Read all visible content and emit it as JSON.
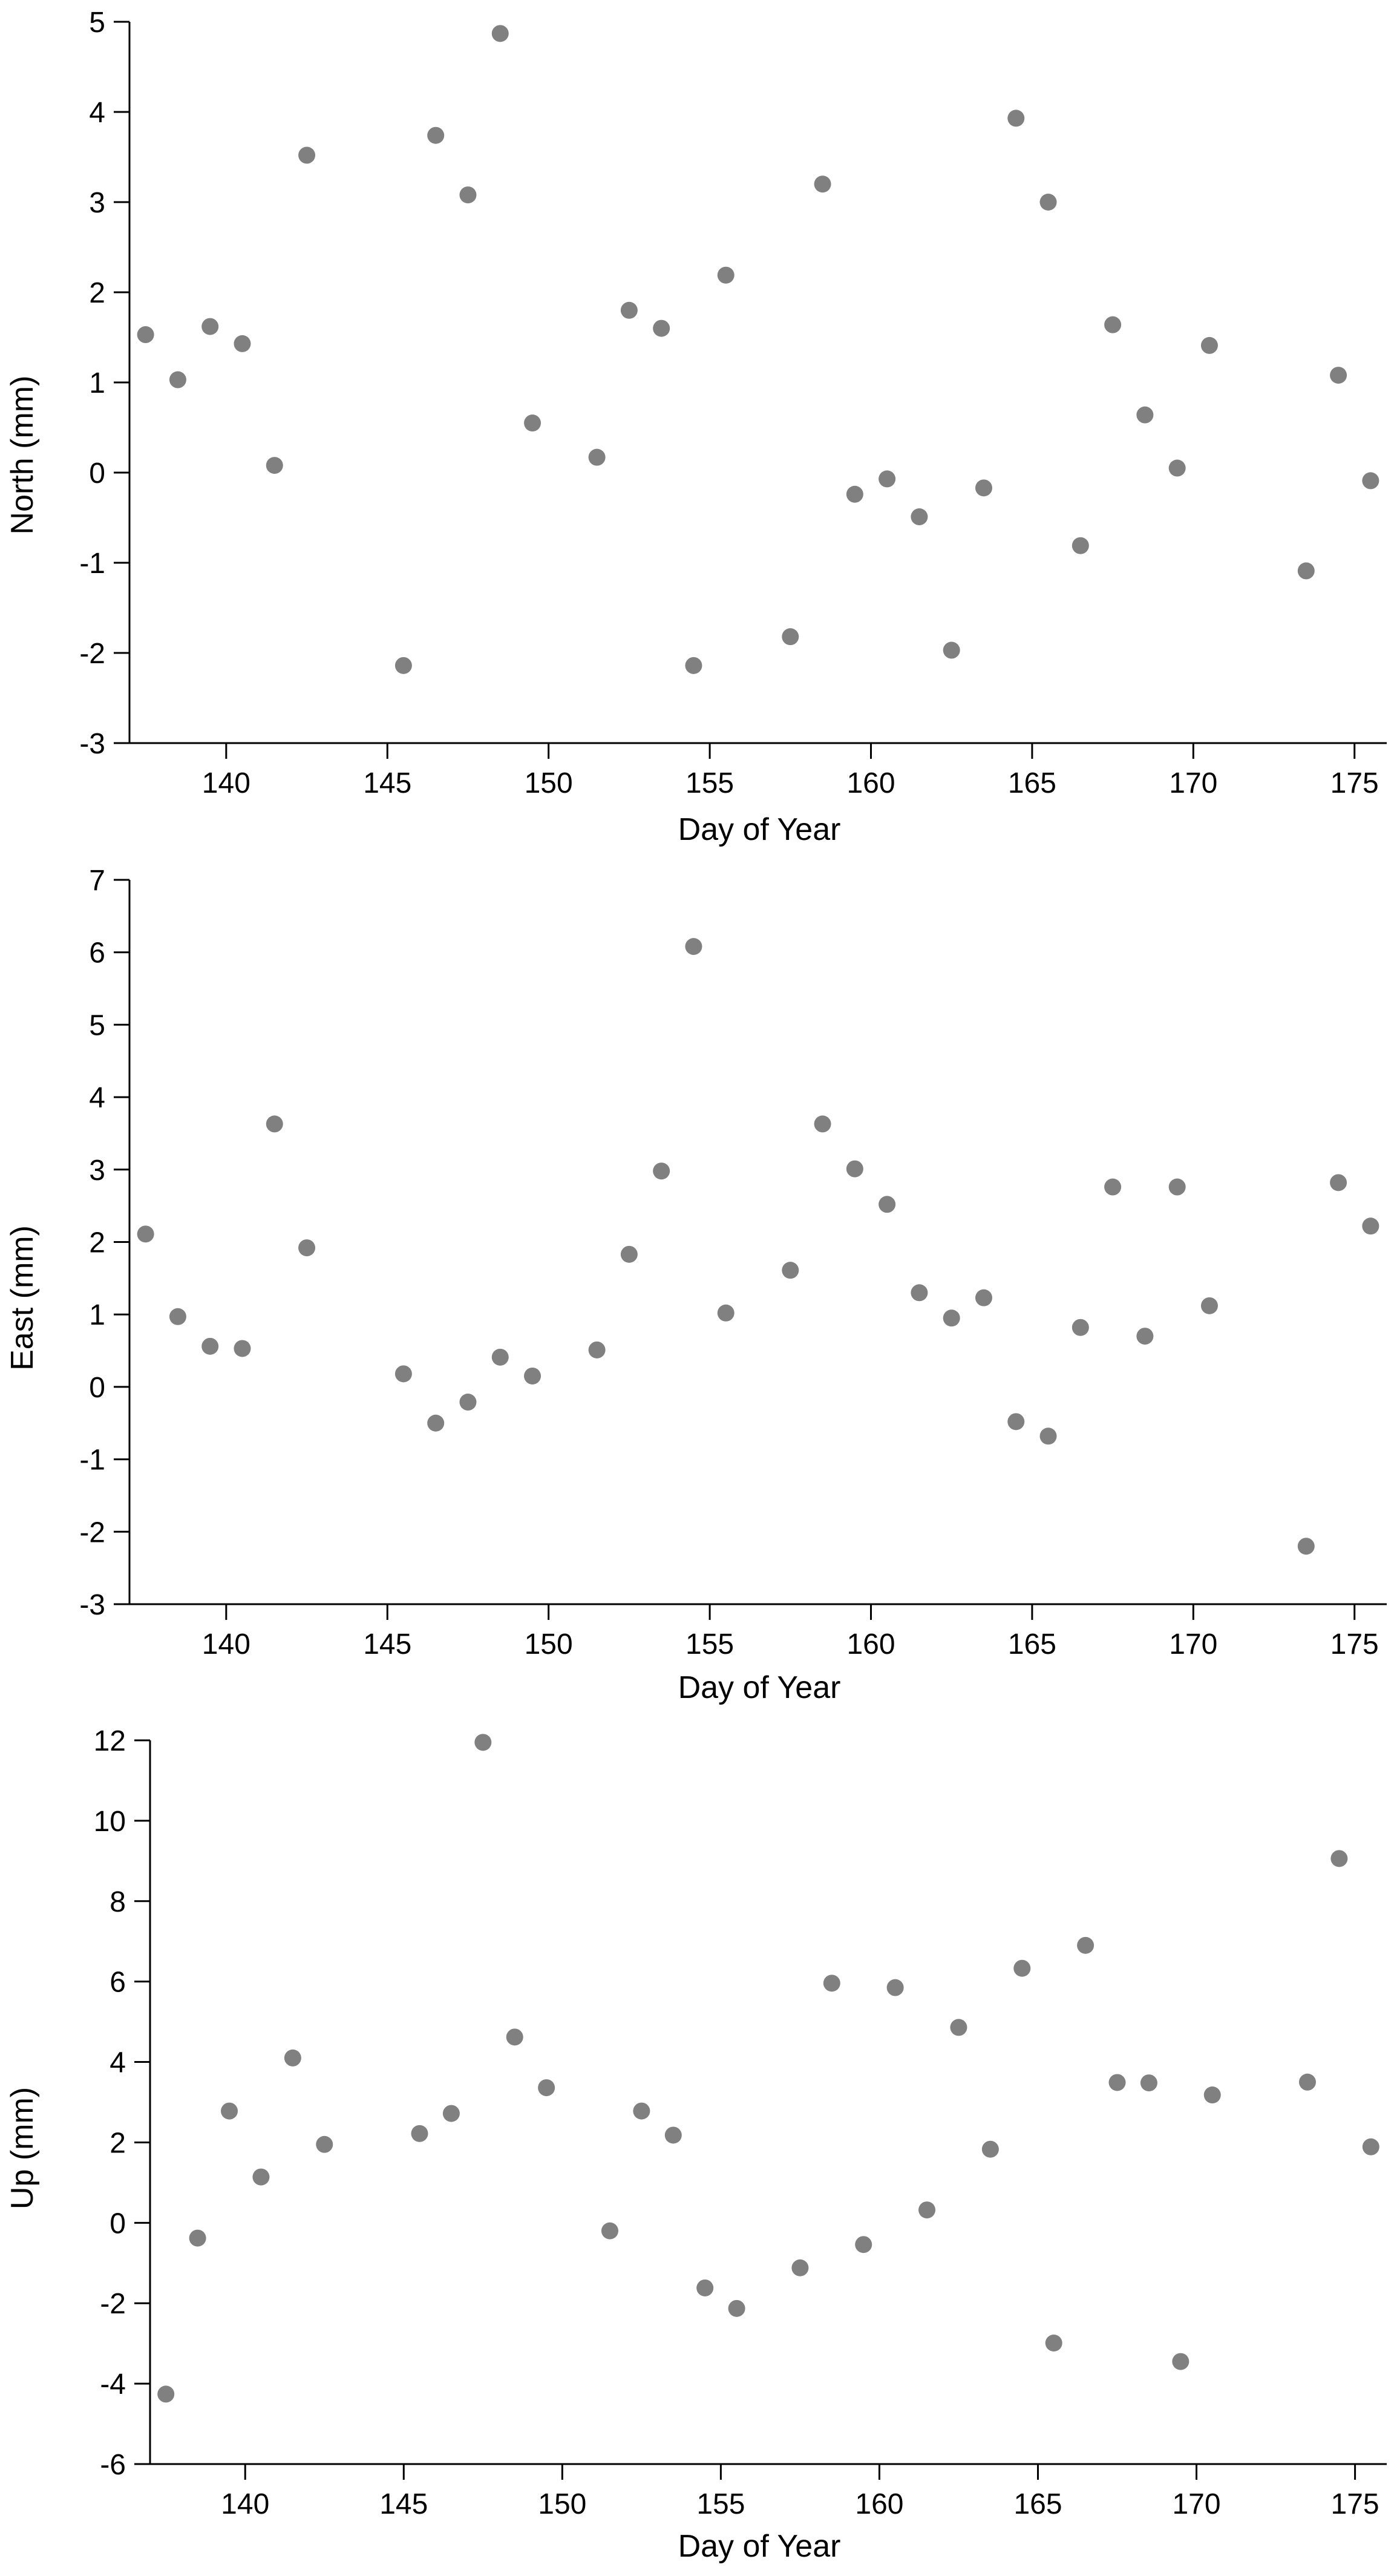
{
  "chart_data": [
    {
      "type": "scatter",
      "xlabel": "Day of Year",
      "ylabel": "North (mm)",
      "xlim": [
        137,
        176
      ],
      "ylim": [
        -3,
        5
      ],
      "xticks": [
        140,
        145,
        150,
        155,
        160,
        165,
        170,
        175
      ],
      "yticks": [
        -3,
        -2,
        -1,
        0,
        1,
        2,
        3,
        4,
        5
      ],
      "grid": false,
      "marker_color": "#808080",
      "x": [
        137.5,
        138.5,
        139.5,
        140.5,
        141.5,
        142.5,
        145.5,
        146.5,
        147.5,
        148.5,
        149.5,
        151.5,
        152.5,
        153.5,
        154.5,
        155.5,
        157.5,
        158.5,
        159.5,
        160.5,
        161.5,
        162.5,
        163.5,
        164.5,
        165.5,
        166.5,
        167.5,
        168.5,
        169.5,
        170.5,
        173.5,
        174.5,
        175.5
      ],
      "y": [
        1.53,
        1.03,
        1.62,
        1.43,
        0.08,
        3.52,
        -2.14,
        3.74,
        3.08,
        4.87,
        0.55,
        0.17,
        1.8,
        1.6,
        -2.14,
        2.19,
        -1.82,
        3.2,
        -0.24,
        -0.07,
        -0.49,
        -1.97,
        -0.17,
        3.93,
        3.0,
        -0.81,
        1.64,
        0.64,
        0.05,
        1.41,
        -1.09,
        1.08,
        -0.09
      ]
    },
    {
      "type": "scatter",
      "xlabel": "Day of Year",
      "ylabel": "East (mm)",
      "xlim": [
        137,
        176
      ],
      "ylim": [
        -3,
        7
      ],
      "xticks": [
        140,
        145,
        150,
        155,
        160,
        165,
        170,
        175
      ],
      "yticks": [
        -3,
        -2,
        -1,
        0,
        1,
        2,
        3,
        4,
        5,
        6,
        7
      ],
      "grid": false,
      "marker_color": "#808080",
      "x": [
        137.5,
        138.5,
        139.5,
        140.5,
        141.5,
        142.5,
        145.5,
        146.5,
        147.5,
        148.5,
        149.5,
        151.5,
        152.5,
        153.5,
        154.5,
        155.5,
        157.5,
        158.5,
        159.5,
        160.5,
        161.5,
        162.5,
        163.5,
        164.5,
        165.5,
        166.5,
        167.5,
        168.5,
        169.5,
        170.5,
        173.5,
        174.5,
        175.5
      ],
      "y": [
        2.11,
        0.97,
        0.56,
        0.53,
        3.63,
        1.92,
        0.18,
        -0.5,
        -0.21,
        0.41,
        0.15,
        0.51,
        1.83,
        2.98,
        6.08,
        1.02,
        1.61,
        3.63,
        3.01,
        2.52,
        1.3,
        0.95,
        1.23,
        -0.48,
        -0.68,
        0.82,
        2.76,
        0.7,
        2.76,
        1.12,
        -2.2,
        2.82,
        2.22
      ]
    },
    {
      "type": "scatter",
      "xlabel": "Day of Year",
      "ylabel": "Up (mm)",
      "xlim": [
        137,
        176
      ],
      "ylim": [
        -6,
        12
      ],
      "xticks": [
        140,
        145,
        150,
        155,
        160,
        165,
        170,
        175
      ],
      "yticks": [
        -6,
        -4,
        -2,
        0,
        2,
        4,
        6,
        8,
        10,
        12
      ],
      "grid": false,
      "marker_color": "#808080",
      "x": [
        137.5,
        138.5,
        139.5,
        140.5,
        141.5,
        142.5,
        145.5,
        146.5,
        147.5,
        148.5,
        149.5,
        151.5,
        152.5,
        153.5,
        154.5,
        155.5,
        157.5,
        158.5,
        159.5,
        160.5,
        161.5,
        162.5,
        163.5,
        164.5,
        165.5,
        166.5,
        167.5,
        168.5,
        169.5,
        170.5,
        173.5,
        174.5,
        175.5
      ],
      "y": [
        -4.26,
        -0.38,
        2.78,
        1.14,
        4.1,
        1.95,
        2.22,
        2.72,
        11.95,
        4.62,
        3.36,
        -0.2,
        2.78,
        2.18,
        -1.62,
        -2.13,
        -1.12,
        5.96,
        -0.54,
        5.85,
        0.32,
        4.86,
        1.83,
        6.33,
        -2.99,
        6.9,
        3.49,
        3.48,
        -3.45,
        3.18,
        3.5,
        9.06,
        1.89
      ]
    }
  ]
}
